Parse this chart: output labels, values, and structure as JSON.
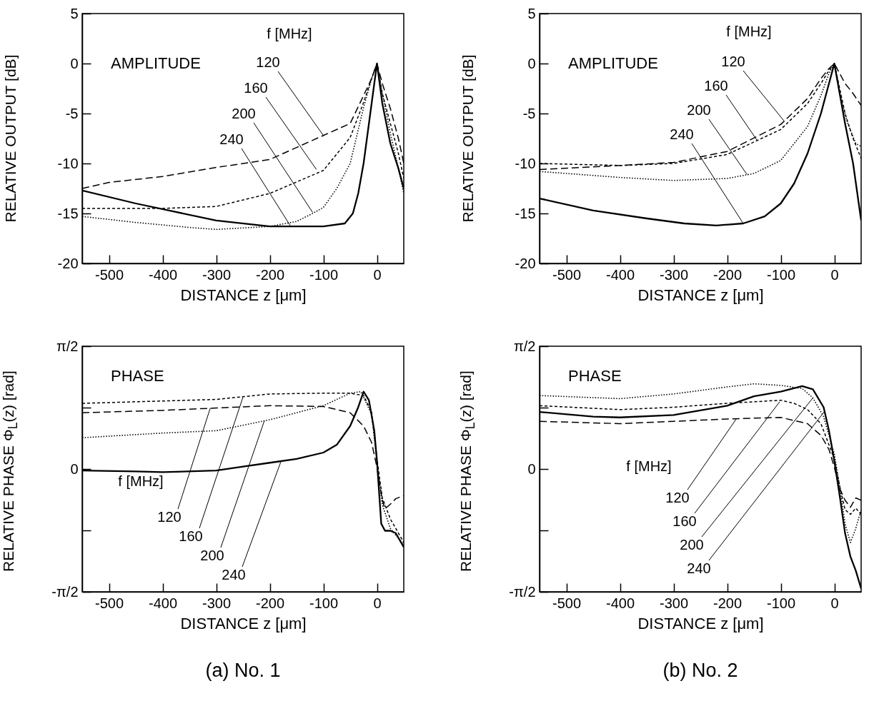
{
  "chart_data": [
    {
      "type": "line",
      "title": "AMPLITUDE",
      "xlabel": "DISTANCE z [μm]",
      "ylabel": "RELATIVE OUTPUT [dB]",
      "legend_title": "f [MHz]",
      "xlim": [
        -550,
        50
      ],
      "ylim": [
        -20,
        5
      ],
      "xticks": [
        -500,
        -400,
        -300,
        -200,
        -100,
        0
      ],
      "yticks": [
        -20,
        -15,
        -10,
        -5,
        0,
        5
      ],
      "annotations": [
        {
          "text": "120",
          "x": -100,
          "y": -7.2
        },
        {
          "text": "160",
          "x": -113,
          "y": -10.6
        },
        {
          "text": "200",
          "x": -120,
          "y": -14.9
        },
        {
          "text": "240",
          "x": -162,
          "y": -16.2
        }
      ],
      "series": [
        {
          "color": "#000000",
          "line_style": "dashed",
          "x": [
            -550,
            -500,
            -400,
            -300,
            -200,
            -100,
            -50,
            -25,
            -10,
            0,
            10,
            25,
            40,
            50
          ],
          "values": [
            -12.5,
            -11.9,
            -11.3,
            -10.4,
            -9.6,
            -7.2,
            -6.0,
            -3.2,
            -1.5,
            0,
            -2,
            -4.5,
            -7.5,
            -10
          ]
        },
        {
          "color": "#000000",
          "line_style": "dashed",
          "x": [
            -550,
            -400,
            -300,
            -200,
            -100,
            -50,
            -25,
            -10,
            0,
            10,
            25,
            40,
            50
          ],
          "values": [
            -14.5,
            -14.5,
            -14.3,
            -13.0,
            -10.7,
            -7.4,
            -3.9,
            -1.5,
            0,
            -3,
            -6,
            -9,
            -11.5
          ]
        },
        {
          "color": "#000000",
          "line_style": "dotted",
          "x": [
            -550,
            -450,
            -350,
            -300,
            -200,
            -150,
            -120,
            -100,
            -75,
            -50,
            -25,
            -10,
            0,
            10,
            25,
            40,
            50
          ],
          "values": [
            -15.3,
            -15.9,
            -16.4,
            -16.6,
            -16.3,
            -15.8,
            -15.0,
            -14.4,
            -12.5,
            -10.0,
            -4.4,
            -1.5,
            0,
            -3,
            -7,
            -10.5,
            -13
          ]
        },
        {
          "color": "#000000",
          "line_style": "solid",
          "x": [
            -550,
            -450,
            -380,
            -300,
            -200,
            -100,
            -60,
            -45,
            -35,
            -25,
            -10,
            0,
            10,
            25,
            40,
            50
          ],
          "values": [
            -12.7,
            -14.0,
            -14.8,
            -15.7,
            -16.3,
            -16.3,
            -16.0,
            -15.0,
            -13,
            -10,
            -4,
            0,
            -4,
            -8,
            -10.5,
            -12.5
          ]
        }
      ]
    },
    {
      "type": "line",
      "title": "AMPLITUDE",
      "xlabel": "DISTANCE z [μm]",
      "ylabel": "RELATIVE OUTPUT [dB]",
      "legend_title": "f [MHz]",
      "xlim": [
        -550,
        50
      ],
      "ylim": [
        -20,
        5
      ],
      "xticks": [
        -500,
        -400,
        -300,
        -200,
        -100,
        0
      ],
      "yticks": [
        -20,
        -15,
        -10,
        -5,
        0,
        5
      ],
      "annotations": [
        {
          "text": "120",
          "x": -93,
          "y": -5.8
        },
        {
          "text": "160",
          "x": -144,
          "y": -7.7
        },
        {
          "text": "200",
          "x": -163,
          "y": -11.1
        },
        {
          "text": "240",
          "x": -170,
          "y": -16.0
        }
      ],
      "series": [
        {
          "color": "#000000",
          "line_style": "dashed",
          "x": [
            -550,
            -400,
            -300,
            -200,
            -100,
            -50,
            -25,
            -10,
            0,
            10,
            20,
            35,
            50
          ],
          "values": [
            -10.6,
            -10.2,
            -9.9,
            -8.8,
            -6.1,
            -3.5,
            -1.5,
            -0.5,
            0,
            -1,
            -2,
            -3,
            -4.2
          ]
        },
        {
          "color": "#000000",
          "line_style": "dashed",
          "x": [
            -550,
            -400,
            -300,
            -200,
            -100,
            -50,
            -25,
            -10,
            0,
            10,
            20,
            35,
            50
          ],
          "values": [
            -10.0,
            -10.2,
            -10.0,
            -9.1,
            -6.6,
            -4.0,
            -2,
            -0.7,
            0,
            -2.5,
            -5,
            -7.5,
            -9.5
          ]
        },
        {
          "color": "#000000",
          "line_style": "dotted",
          "x": [
            -550,
            -400,
            -300,
            -200,
            -150,
            -100,
            -50,
            -25,
            -10,
            0,
            10,
            25,
            40,
            50
          ],
          "values": [
            -10.8,
            -11.4,
            -11.7,
            -11.5,
            -11.0,
            -9.7,
            -6.3,
            -3.2,
            -1,
            0,
            -3,
            -6,
            -8,
            -8.3
          ]
        },
        {
          "color": "#000000",
          "line_style": "solid",
          "x": [
            -550,
            -450,
            -350,
            -280,
            -220,
            -170,
            -130,
            -100,
            -75,
            -50,
            -25,
            -10,
            0,
            10,
            20,
            35,
            50
          ],
          "values": [
            -13.5,
            -14.7,
            -15.5,
            -16.0,
            -16.2,
            -16.0,
            -15.3,
            -14.0,
            -12.0,
            -9.0,
            -5.0,
            -2.0,
            0,
            -3,
            -6,
            -10,
            -15.7
          ]
        }
      ]
    },
    {
      "type": "line",
      "title": "PHASE",
      "xlabel": "DISTANCE z [μm]",
      "ylabel": "RELATIVE PHASE Φ$_{L}$(z) [rad]",
      "legend_title": "f [MHz]",
      "xlim": [
        -550,
        50
      ],
      "ylim": [
        -1.5708,
        1.5708
      ],
      "xticks": [
        -500,
        -400,
        -300,
        -200,
        -100,
        0
      ],
      "yticks": [
        {
          "value": -1.5708,
          "label": "-π/2"
        },
        {
          "value": -0.7854,
          "label": null
        },
        0,
        {
          "value": 0.7854,
          "label": null
        },
        {
          "value": 1.5708,
          "label": "π/2"
        }
      ],
      "annotations": [
        {
          "text": "120",
          "x": -311,
          "y": 0.78
        },
        {
          "text": "160",
          "x": -250,
          "y": 0.92
        },
        {
          "text": "200",
          "x": -210,
          "y": 0.62
        },
        {
          "text": "240",
          "x": -179,
          "y": 0.1
        },
        "(a) No. 1"
      ],
      "series": [
        {
          "color": "#000000",
          "line_style": "dashed",
          "x": [
            -550,
            -400,
            -300,
            -200,
            -100,
            -50,
            -25,
            -10,
            0,
            10,
            15,
            25,
            35,
            50
          ],
          "values": [
            0.72,
            0.75,
            0.78,
            0.81,
            0.8,
            0.72,
            0.55,
            0.34,
            0.02,
            -0.4,
            -0.51,
            -0.45,
            -0.38,
            -0.34
          ]
        },
        {
          "color": "#000000",
          "line_style": "dashed",
          "x": [
            -550,
            -400,
            -300,
            -200,
            -100,
            -50,
            -25,
            -10,
            0,
            10,
            25,
            50
          ],
          "values": [
            0.84,
            0.87,
            0.89,
            0.96,
            0.97,
            0.97,
            0.94,
            0.73,
            0.13,
            -0.37,
            -0.64,
            -0.94
          ]
        },
        {
          "color": "#000000",
          "line_style": "dotted",
          "x": [
            -550,
            -400,
            -300,
            -200,
            -100,
            -50,
            -30,
            -10,
            0,
            10,
            25,
            50
          ],
          "values": [
            0.4,
            0.46,
            0.49,
            0.63,
            0.81,
            0.97,
            0.99,
            0.7,
            0.1,
            -0.46,
            -0.76,
            -0.97
          ]
        },
        {
          "color": "#000000",
          "line_style": "solid",
          "x": [
            -550,
            -450,
            -400,
            -300,
            -250,
            -200,
            -150,
            -100,
            -75,
            -50,
            -35,
            -25,
            -15,
            -5,
            0,
            8,
            15,
            25,
            35,
            50
          ],
          "values": [
            -0.02,
            -0.03,
            -0.04,
            -0.02,
            0.03,
            0.08,
            0.13,
            0.21,
            0.31,
            0.55,
            0.79,
            0.99,
            0.88,
            0.49,
            0.1,
            -0.7,
            -0.79,
            -0.79,
            -0.82,
            -1.0
          ]
        }
      ]
    },
    {
      "type": "line",
      "title": "PHASE",
      "xlabel": "DISTANCE z [μm]",
      "ylabel": "RELATIVE PHASE Φ$_{L}$(z) [rad]",
      "legend_title": "f [MHz]",
      "xlim": [
        -550,
        50
      ],
      "ylim": [
        -1.5708,
        1.5708
      ],
      "xticks": [
        -500,
        -400,
        -300,
        -200,
        -100,
        0
      ],
      "yticks": [
        {
          "value": -1.5708,
          "label": "-π/2"
        },
        {
          "value": -0.7854,
          "label": null
        },
        0,
        {
          "value": 0.7854,
          "label": null
        },
        {
          "value": 1.5708,
          "label": "π/2"
        }
      ],
      "annotations": [
        {
          "text": "120",
          "x": -183,
          "y": 0.64
        },
        {
          "text": "160",
          "x": -102,
          "y": 0.86
        },
        {
          "text": "200",
          "x": -40,
          "y": 0.91
        },
        {
          "text": "240",
          "x": -18,
          "y": 0.74
        },
        "(b) No. 2"
      ],
      "series": [
        {
          "color": "#000000",
          "line_style": "dashed",
          "x": [
            -550,
            -400,
            -300,
            -200,
            -100,
            -50,
            -25,
            -10,
            0,
            10,
            20,
            30,
            40,
            50
          ],
          "values": [
            0.61,
            0.58,
            0.61,
            0.64,
            0.66,
            0.58,
            0.43,
            0.25,
            0.02,
            -0.25,
            -0.4,
            -0.49,
            -0.37,
            -0.4
          ]
        },
        {
          "color": "#000000",
          "line_style": "dashed",
          "x": [
            -550,
            -400,
            -300,
            -200,
            -100,
            -75,
            -50,
            -25,
            0,
            10,
            20,
            30,
            40,
            50
          ],
          "values": [
            0.81,
            0.76,
            0.79,
            0.84,
            0.88,
            0.84,
            0.76,
            0.58,
            0.13,
            -0.22,
            -0.52,
            -0.58,
            -0.5,
            -0.58
          ]
        },
        {
          "color": "#000000",
          "line_style": "dotted",
          "x": [
            -550,
            -400,
            -300,
            -200,
            -150,
            -100,
            -60,
            -40,
            -20,
            0,
            10,
            20,
            30,
            40,
            50
          ],
          "values": [
            0.94,
            0.9,
            0.96,
            1.05,
            1.09,
            1.07,
            1.03,
            0.91,
            0.67,
            0.19,
            -0.22,
            -0.7,
            -0.94,
            -0.76,
            -0.52
          ]
        },
        {
          "color": "#000000",
          "line_style": "solid",
          "x": [
            -550,
            -450,
            -400,
            -300,
            -200,
            -150,
            -100,
            -60,
            -40,
            -20,
            -10,
            0,
            10,
            20,
            30,
            40,
            50
          ],
          "values": [
            0.73,
            0.67,
            0.66,
            0.69,
            0.81,
            0.93,
            0.99,
            1.06,
            1.02,
            0.79,
            0.49,
            0.1,
            -0.34,
            -0.82,
            -1.12,
            -1.3,
            -1.53
          ]
        }
      ]
    }
  ]
}
